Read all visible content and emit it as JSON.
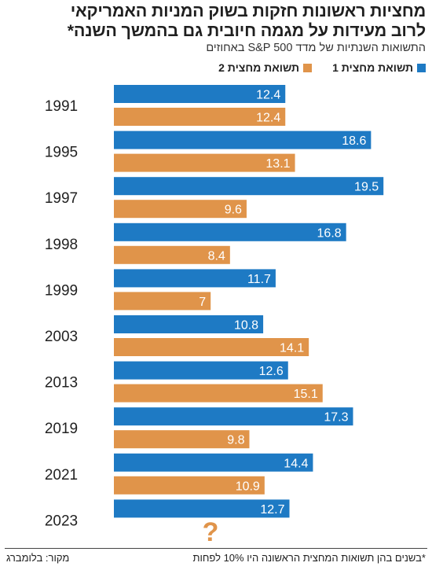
{
  "colors": {
    "half1": "#1e7ac4",
    "half2": "#e0944a",
    "question": "#e0944a"
  },
  "chart_data": {
    "type": "bar",
    "orientation": "horizontal",
    "title_lines": [
      "מחציות ראשונות חזקות בשוק המניות האמריקאי",
      "לרוב מעידות על מגמה חיובית גם בהמשך השנה*"
    ],
    "subtitle": "התשואות השנתיות של מדד S&P 500 באחוזים",
    "legend_position": "top-right",
    "grid": false,
    "xlim": [
      0,
      20
    ],
    "categories": [
      "1991",
      "1995",
      "1997",
      "1998",
      "1999",
      "2003",
      "2013",
      "2019",
      "2021",
      "2023"
    ],
    "series": [
      {
        "name": "תשואת מחצית 1",
        "color": "#1e7ac4",
        "values": [
          12.4,
          18.6,
          19.5,
          16.8,
          11.7,
          10.8,
          12.6,
          17.3,
          14.4,
          12.7
        ],
        "labels": [
          "12.4",
          "18.6",
          "19.5",
          "16.8",
          "11.7",
          "10.8",
          "12.6",
          "17.3",
          "14.4",
          "12.7"
        ]
      },
      {
        "name": "תשואת מחצית 2",
        "color": "#e0944a",
        "values": [
          12.4,
          13.1,
          9.6,
          8.4,
          7,
          14.1,
          15.1,
          9.8,
          10.9,
          null
        ],
        "labels": [
          "12.4",
          "13.1",
          "9.6",
          "8.4",
          "7",
          "14.1",
          "15.1",
          "9.8",
          "10.9",
          "?"
        ]
      }
    ]
  },
  "footnote": "*בשנים בהן תשואות המחצית הראשונה היו 10% לפחות",
  "source": "מקור: בלומברג"
}
